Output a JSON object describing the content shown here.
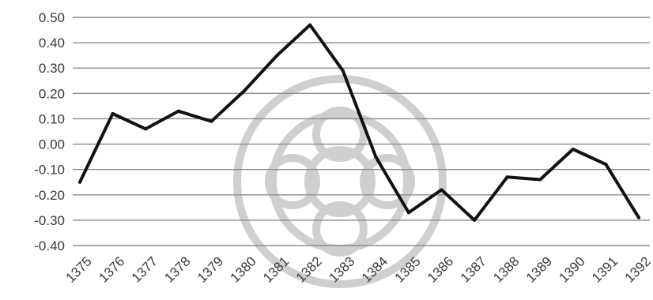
{
  "chart_data": {
    "type": "line",
    "title": "",
    "xlabel": "",
    "ylabel": "",
    "categories": [
      "1375",
      "1376",
      "1377",
      "1378",
      "1379",
      "1380",
      "1381",
      "1382",
      "1383",
      "1384",
      "1385",
      "1386",
      "1387",
      "1388",
      "1389",
      "1390",
      "1391",
      "1392"
    ],
    "series": [
      {
        "values": [
          -0.15,
          0.12,
          0.06,
          0.13,
          0.09,
          0.21,
          0.35,
          0.47,
          0.29,
          -0.05,
          -0.27,
          -0.18,
          -0.3,
          -0.13,
          -0.14,
          -0.02,
          -0.08,
          -0.29
        ]
      }
    ],
    "ylim": [
      -0.4,
      0.5
    ],
    "yticks": [
      "0.50",
      "0.40",
      "0.30",
      "0.20",
      "0.10",
      "0.00",
      "-0.10",
      "-0.20",
      "-0.30",
      "-0.40"
    ],
    "grid": true,
    "legend": "none",
    "line_color": "#111111",
    "grid_color": "#8c8c8c"
  }
}
